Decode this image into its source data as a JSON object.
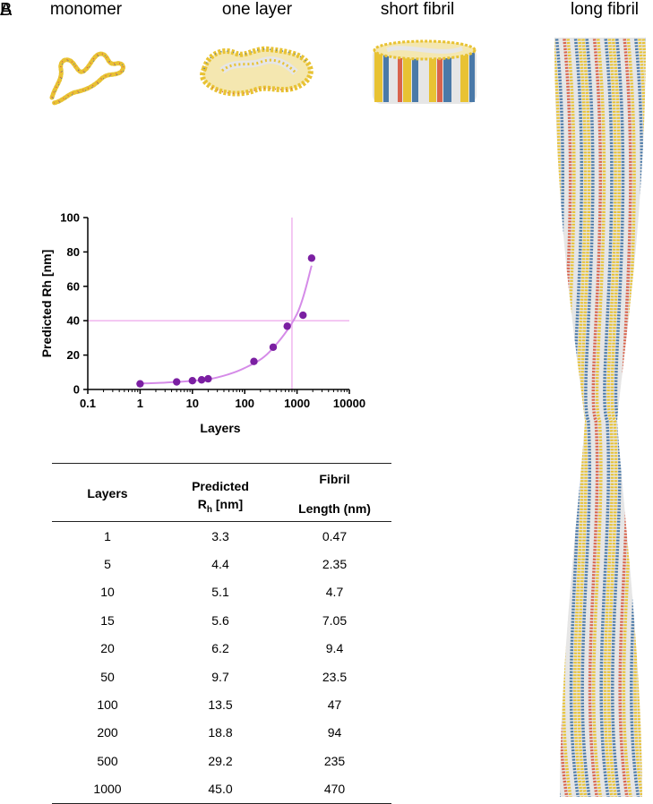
{
  "panel_letters": [
    "B",
    "A"
  ],
  "structures": [
    {
      "label": "monomer"
    },
    {
      "label": "one layer"
    },
    {
      "label": "short fibril"
    },
    {
      "label": "long fibril"
    }
  ],
  "colors": {
    "marker": "#7b1fa2",
    "fit_curve": "#d58be8",
    "reference_lines": "#f0b6ee",
    "axis": "#000000",
    "fibril_yellow": "#e8c233",
    "fibril_blue": "#4a79a8",
    "fibril_white": "#e6e6e6",
    "fibril_red": "#d9634c"
  },
  "chart_data": {
    "type": "scatter",
    "xlabel": "Layers",
    "ylabel": "Predicted Rh [nm]",
    "x_scale": "log",
    "xlim": [
      0.1,
      10000
    ],
    "ylim": [
      0,
      100
    ],
    "xticks": [
      "0.1",
      "1",
      "10",
      "100",
      "1000",
      "10000"
    ],
    "yticks": [
      "0",
      "20",
      "40",
      "60",
      "80",
      "100"
    ],
    "grid": false,
    "points": {
      "x": [
        1,
        5,
        10,
        15,
        20,
        150,
        350,
        650,
        1300,
        1900
      ],
      "y": [
        3.3,
        4.4,
        5.1,
        5.6,
        6.2,
        16.3,
        24.6,
        36.8,
        43.2,
        76.4
      ]
    },
    "fit_curve": {
      "x": [
        1,
        3,
        10,
        30,
        100,
        300,
        1000,
        1900
      ],
      "y": [
        3.5,
        4.0,
        5.0,
        7.0,
        12.5,
        22.0,
        44.0,
        72.0
      ]
    },
    "reference_lines": {
      "horizontal_y": 40,
      "vertical_x": 800
    }
  },
  "table": {
    "headers": {
      "layers": "Layers",
      "rh_line1": "Predicted",
      "rh_symbol": "R",
      "rh_subscript": "h",
      "rh_unit": " [nm]",
      "fibril_line1": "Fibril",
      "fibril_line2": "Length (nm)"
    },
    "rows": [
      [
        "1",
        "3.3",
        "0.47"
      ],
      [
        "5",
        "4.4",
        "2.35"
      ],
      [
        "10",
        "5.1",
        "4.7"
      ],
      [
        "15",
        "5.6",
        "7.05"
      ],
      [
        "20",
        "6.2",
        "9.4"
      ],
      [
        "50",
        "9.7",
        "23.5"
      ],
      [
        "100",
        "13.5",
        "47"
      ],
      [
        "200",
        "18.8",
        "94"
      ],
      [
        "500",
        "29.2",
        "235"
      ],
      [
        "1000",
        "45.0",
        "470"
      ]
    ]
  }
}
